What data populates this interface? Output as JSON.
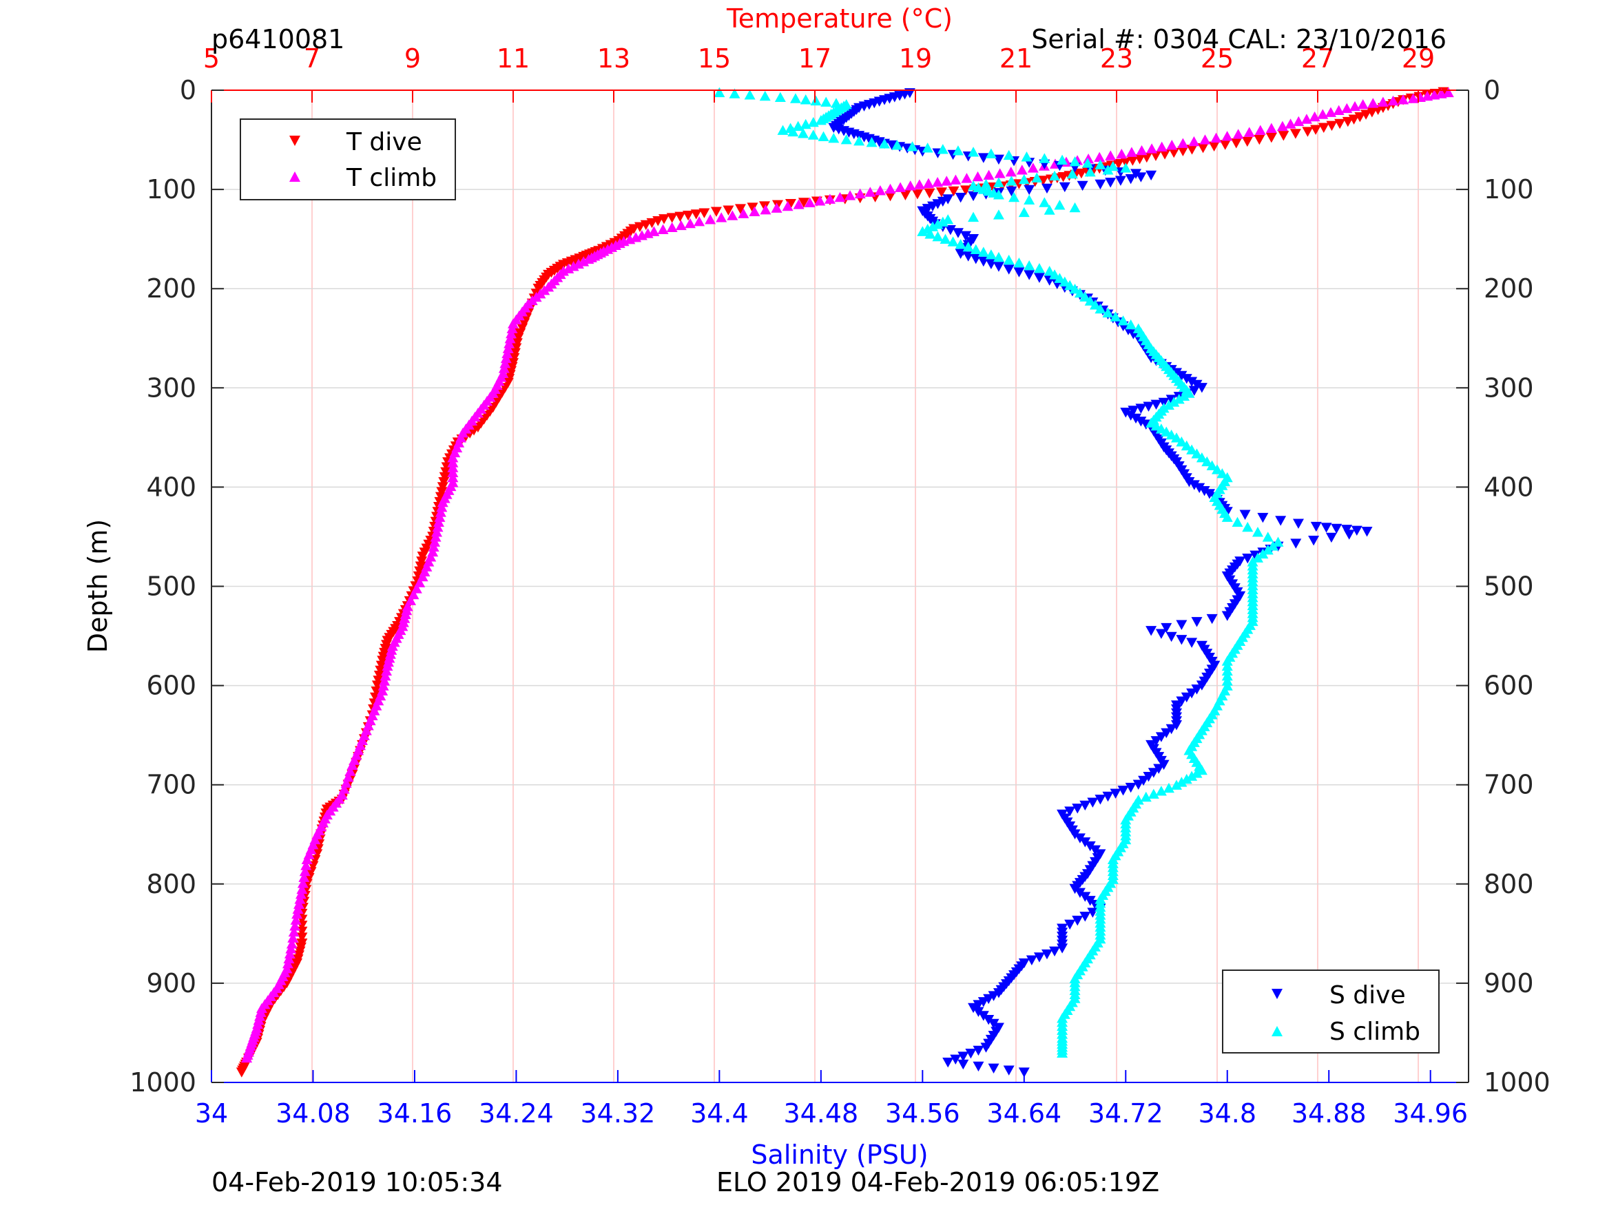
{
  "header": {
    "profile_id": "p6410081",
    "serial_cal": "Serial #: 0304  CAL: 23/10/2016"
  },
  "footer": {
    "left": "04-Feb-2019 10:05:34",
    "right": "ELO 2019 04-Feb-2019 06:05:19Z"
  },
  "colors": {
    "temperature_axis": "#ff0000",
    "salinity_axis": "#0000ff",
    "t_dive": "#ff0000",
    "t_climb": "#ff00ff",
    "s_dive": "#0000ff",
    "s_climb": "#00ffff",
    "grid_temperature": "#ffc0c0",
    "grid_depth": "#d9d9d9"
  },
  "chart_data": {
    "type": "scatter",
    "top_axis": {
      "label": "Temperature (°C)",
      "range": [
        5,
        30
      ],
      "ticks": [
        5,
        7,
        9,
        11,
        13,
        15,
        17,
        19,
        21,
        23,
        25,
        27,
        29
      ],
      "tick_labels": [
        "5",
        "7",
        "9",
        "11",
        "13",
        "15",
        "17",
        "19",
        "21",
        "23",
        "25",
        "27",
        "29"
      ]
    },
    "bottom_axis": {
      "label": "Salinity (PSU)",
      "range": [
        34.0,
        34.99
      ],
      "ticks": [
        34,
        34.08,
        34.16,
        34.24,
        34.32,
        34.4,
        34.48,
        34.56,
        34.64,
        34.72,
        34.8,
        34.88,
        34.96
      ],
      "tick_labels": [
        "34",
        "34.08",
        "34.16",
        "34.24",
        "34.32",
        "34.4",
        "34.48",
        "34.56",
        "34.64",
        "34.72",
        "34.8",
        "34.88",
        "34.96"
      ]
    },
    "y_axis": {
      "label": "Depth (m)",
      "range": [
        0,
        1000
      ],
      "reversed": true,
      "ticks": [
        0,
        100,
        200,
        300,
        400,
        500,
        600,
        700,
        800,
        900,
        1000
      ],
      "tick_labels": [
        "0",
        "100",
        "200",
        "300",
        "400",
        "500",
        "600",
        "700",
        "800",
        "900",
        "1000"
      ]
    },
    "grid": true,
    "legends": [
      {
        "placement": "top-left",
        "entries": [
          "T dive",
          "T climb"
        ]
      },
      {
        "placement": "bottom-right",
        "entries": [
          "S dive",
          "S climb"
        ]
      }
    ],
    "series": [
      {
        "name": "T dive",
        "axis": "temperature",
        "marker": "triangle-down",
        "points": [
          [
            29.5,
            2
          ],
          [
            28.7,
            10
          ],
          [
            28.2,
            20
          ],
          [
            27.6,
            32
          ],
          [
            26.8,
            42
          ],
          [
            25.6,
            52
          ],
          [
            24.5,
            60
          ],
          [
            23.6,
            68
          ],
          [
            22.9,
            76
          ],
          [
            22.3,
            84
          ],
          [
            21.7,
            90
          ],
          [
            20.9,
            96
          ],
          [
            20.0,
            101
          ],
          [
            18.8,
            106
          ],
          [
            17.3,
            111
          ],
          [
            16.0,
            117
          ],
          [
            14.8,
            124
          ],
          [
            14.0,
            130
          ],
          [
            13.4,
            140
          ],
          [
            13.1,
            152
          ],
          [
            12.7,
            162
          ],
          [
            12.4,
            168
          ],
          [
            12.0,
            176
          ],
          [
            11.7,
            186
          ],
          [
            11.5,
            200
          ],
          [
            11.3,
            225
          ],
          [
            11.1,
            250
          ],
          [
            11.0,
            275
          ],
          [
            10.9,
            295
          ],
          [
            10.6,
            320
          ],
          [
            10.3,
            340
          ],
          [
            9.9,
            355
          ],
          [
            9.7,
            375
          ],
          [
            9.6,
            400
          ],
          [
            9.5,
            425
          ],
          [
            9.4,
            450
          ],
          [
            9.2,
            470
          ],
          [
            9.1,
            495
          ],
          [
            8.9,
            520
          ],
          [
            8.7,
            540
          ],
          [
            8.5,
            555
          ],
          [
            8.4,
            575
          ],
          [
            8.3,
            600
          ],
          [
            8.2,
            630
          ],
          [
            8.0,
            660
          ],
          [
            7.8,
            690
          ],
          [
            7.6,
            715
          ],
          [
            7.3,
            725
          ],
          [
            7.2,
            745
          ],
          [
            7.1,
            770
          ],
          [
            6.9,
            800
          ],
          [
            6.8,
            830
          ],
          [
            6.8,
            860
          ],
          [
            6.7,
            880
          ],
          [
            6.5,
            900
          ],
          [
            6.2,
            920
          ],
          [
            6.0,
            940
          ],
          [
            5.9,
            960
          ],
          [
            5.7,
            980
          ],
          [
            5.6,
            990
          ]
        ]
      },
      {
        "name": "T climb",
        "axis": "temperature",
        "marker": "triangle-up",
        "points": [
          [
            29.6,
            2
          ],
          [
            28.9,
            8
          ],
          [
            27.9,
            14
          ],
          [
            27.1,
            24
          ],
          [
            26.3,
            36
          ],
          [
            25.2,
            46
          ],
          [
            24.1,
            55
          ],
          [
            23.1,
            64
          ],
          [
            22.0,
            72
          ],
          [
            20.9,
            82
          ],
          [
            19.8,
            90
          ],
          [
            18.9,
            96
          ],
          [
            17.9,
            104
          ],
          [
            16.9,
            113
          ],
          [
            15.8,
            122
          ],
          [
            14.7,
            132
          ],
          [
            13.8,
            142
          ],
          [
            13.2,
            152
          ],
          [
            12.8,
            162
          ],
          [
            12.5,
            170
          ],
          [
            12.0,
            182
          ],
          [
            11.7,
            198
          ],
          [
            11.3,
            215
          ],
          [
            11.0,
            235
          ],
          [
            10.9,
            260
          ],
          [
            10.8,
            285
          ],
          [
            10.6,
            305
          ],
          [
            10.3,
            325
          ],
          [
            10.0,
            345
          ],
          [
            9.8,
            370
          ],
          [
            9.8,
            395
          ],
          [
            9.6,
            415
          ],
          [
            9.5,
            440
          ],
          [
            9.4,
            465
          ],
          [
            9.2,
            490
          ],
          [
            8.9,
            520
          ],
          [
            8.8,
            540
          ],
          [
            8.6,
            560
          ],
          [
            8.5,
            580
          ],
          [
            8.4,
            605
          ],
          [
            8.2,
            630
          ],
          [
            8.0,
            655
          ],
          [
            7.8,
            680
          ],
          [
            7.6,
            710
          ],
          [
            7.3,
            730
          ],
          [
            7.1,
            750
          ],
          [
            6.9,
            775
          ],
          [
            6.8,
            805
          ],
          [
            6.7,
            830
          ],
          [
            6.6,
            860
          ],
          [
            6.5,
            885
          ],
          [
            6.3,
            905
          ],
          [
            6.0,
            925
          ],
          [
            5.9,
            945
          ],
          [
            5.8,
            960
          ],
          [
            5.7,
            975
          ]
        ]
      },
      {
        "name": "S dive",
        "axis": "salinity",
        "marker": "triangle-down",
        "points": [
          [
            34.55,
            3
          ],
          [
            34.53,
            10
          ],
          [
            34.51,
            18
          ],
          [
            34.5,
            28
          ],
          [
            34.49,
            38
          ],
          [
            34.51,
            46
          ],
          [
            34.53,
            54
          ],
          [
            34.56,
            62
          ],
          [
            34.62,
            70
          ],
          [
            34.68,
            78
          ],
          [
            34.74,
            86
          ],
          [
            34.7,
            95
          ],
          [
            34.63,
            102
          ],
          [
            34.58,
            110
          ],
          [
            34.56,
            122
          ],
          [
            34.57,
            135
          ],
          [
            34.6,
            150
          ],
          [
            34.59,
            165
          ],
          [
            34.62,
            178
          ],
          [
            34.66,
            192
          ],
          [
            34.69,
            210
          ],
          [
            34.71,
            230
          ],
          [
            34.73,
            250
          ],
          [
            34.74,
            270
          ],
          [
            34.76,
            285
          ],
          [
            34.78,
            300
          ],
          [
            34.75,
            315
          ],
          [
            34.72,
            325
          ],
          [
            34.74,
            340
          ],
          [
            34.75,
            360
          ],
          [
            34.76,
            375
          ],
          [
            34.77,
            395
          ],
          [
            34.79,
            410
          ],
          [
            34.8,
            425
          ],
          [
            34.87,
            440
          ],
          [
            34.91,
            445
          ],
          [
            34.84,
            460
          ],
          [
            34.81,
            475
          ],
          [
            34.8,
            490
          ],
          [
            34.81,
            510
          ],
          [
            34.8,
            530
          ],
          [
            34.74,
            545
          ],
          [
            34.78,
            560
          ],
          [
            34.79,
            580
          ],
          [
            34.78,
            600
          ],
          [
            34.76,
            620
          ],
          [
            34.76,
            640
          ],
          [
            34.74,
            660
          ],
          [
            34.75,
            680
          ],
          [
            34.73,
            700
          ],
          [
            34.7,
            715
          ],
          [
            34.67,
            730
          ],
          [
            34.68,
            750
          ],
          [
            34.7,
            770
          ],
          [
            34.69,
            790
          ],
          [
            34.68,
            805
          ],
          [
            34.7,
            825
          ],
          [
            34.67,
            845
          ],
          [
            34.67,
            865
          ],
          [
            34.64,
            880
          ],
          [
            34.63,
            895
          ],
          [
            34.62,
            910
          ],
          [
            34.6,
            925
          ],
          [
            34.62,
            945
          ],
          [
            34.61,
            965
          ],
          [
            34.58,
            980
          ],
          [
            34.64,
            990
          ]
        ]
      },
      {
        "name": "S climb",
        "axis": "salinity",
        "marker": "triangle-up",
        "points": [
          [
            34.4,
            2
          ],
          [
            34.46,
            8
          ],
          [
            34.5,
            14
          ],
          [
            34.49,
            22
          ],
          [
            34.48,
            30
          ],
          [
            34.45,
            40
          ],
          [
            34.49,
            48
          ],
          [
            34.54,
            55
          ],
          [
            34.6,
            62
          ],
          [
            34.67,
            70
          ],
          [
            34.72,
            78
          ],
          [
            34.65,
            88
          ],
          [
            34.6,
            96
          ],
          [
            34.62,
            105
          ],
          [
            34.68,
            118
          ],
          [
            34.58,
            130
          ],
          [
            34.56,
            142
          ],
          [
            34.59,
            155
          ],
          [
            34.62,
            168
          ],
          [
            34.66,
            182
          ],
          [
            34.68,
            200
          ],
          [
            34.7,
            220
          ],
          [
            34.73,
            240
          ],
          [
            34.74,
            260
          ],
          [
            34.75,
            275
          ],
          [
            34.76,
            290
          ],
          [
            34.77,
            305
          ],
          [
            34.75,
            320
          ],
          [
            34.74,
            335
          ],
          [
            34.76,
            350
          ],
          [
            34.78,
            370
          ],
          [
            34.8,
            390
          ],
          [
            34.79,
            410
          ],
          [
            34.8,
            430
          ],
          [
            34.84,
            455
          ],
          [
            34.82,
            475
          ],
          [
            34.82,
            495
          ],
          [
            34.82,
            515
          ],
          [
            34.82,
            535
          ],
          [
            34.81,
            555
          ],
          [
            34.8,
            575
          ],
          [
            34.8,
            600
          ],
          [
            34.79,
            625
          ],
          [
            34.78,
            645
          ],
          [
            34.77,
            665
          ],
          [
            34.78,
            685
          ],
          [
            34.76,
            700
          ],
          [
            34.73,
            715
          ],
          [
            34.72,
            735
          ],
          [
            34.72,
            755
          ],
          [
            34.71,
            775
          ],
          [
            34.71,
            795
          ],
          [
            34.7,
            815
          ],
          [
            34.7,
            835
          ],
          [
            34.7,
            855
          ],
          [
            34.69,
            875
          ],
          [
            34.68,
            895
          ],
          [
            34.68,
            915
          ],
          [
            34.67,
            935
          ],
          [
            34.67,
            955
          ],
          [
            34.67,
            970
          ]
        ]
      }
    ]
  }
}
